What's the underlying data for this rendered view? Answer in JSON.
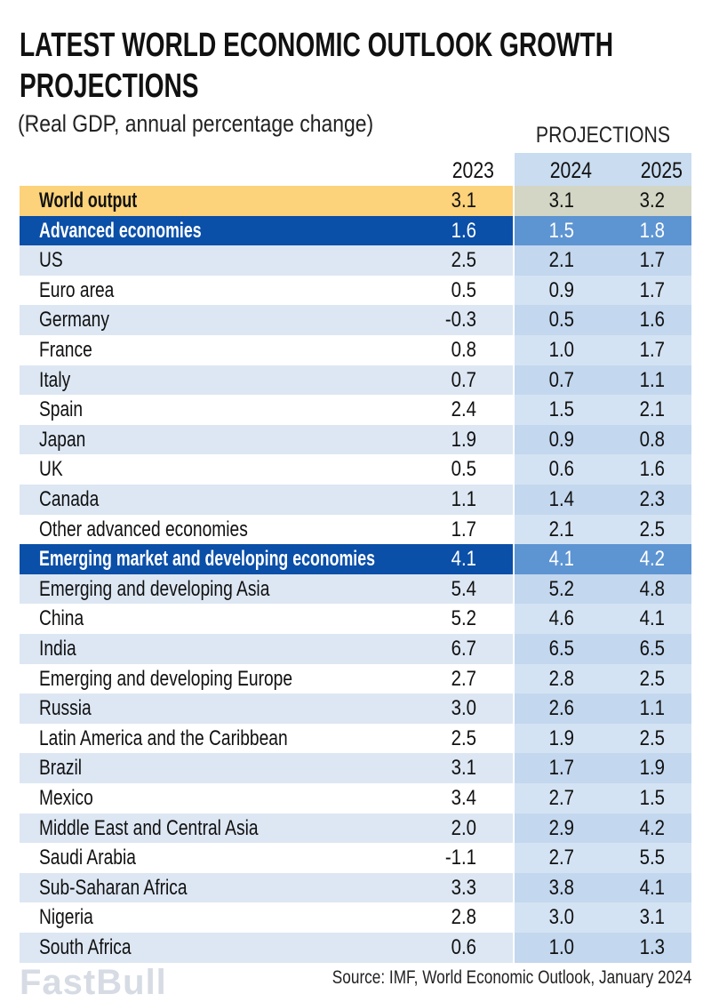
{
  "chart_data": {
    "type": "table",
    "title": "LATEST WORLD ECONOMIC OUTLOOK GROWTH PROJECTIONS",
    "subtitle": "(Real GDP, annual percentage change)",
    "projections_label": "PROJECTIONS",
    "columns": [
      "2023",
      "2024",
      "2025"
    ],
    "rows": [
      {
        "name": "World output",
        "values": [
          "3.1",
          "3.1",
          "3.2"
        ],
        "style": "world"
      },
      {
        "name": "Advanced economies",
        "values": [
          "1.6",
          "1.5",
          "1.8"
        ],
        "style": "group"
      },
      {
        "name": "US",
        "values": [
          "2.5",
          "2.1",
          "1.7"
        ]
      },
      {
        "name": "Euro area",
        "values": [
          "0.5",
          "0.9",
          "1.7"
        ]
      },
      {
        "name": "Germany",
        "values": [
          "-0.3",
          "0.5",
          "1.6"
        ]
      },
      {
        "name": "France",
        "values": [
          "0.8",
          "1.0",
          "1.7"
        ]
      },
      {
        "name": "Italy",
        "values": [
          "0.7",
          "0.7",
          "1.1"
        ]
      },
      {
        "name": "Spain",
        "values": [
          "2.4",
          "1.5",
          "2.1"
        ]
      },
      {
        "name": "Japan",
        "values": [
          "1.9",
          "0.9",
          "0.8"
        ]
      },
      {
        "name": "UK",
        "values": [
          "0.5",
          "0.6",
          "1.6"
        ]
      },
      {
        "name": "Canada",
        "values": [
          "1.1",
          "1.4",
          "2.3"
        ]
      },
      {
        "name": "Other advanced economies",
        "values": [
          "1.7",
          "2.1",
          "2.5"
        ]
      },
      {
        "name": "Emerging market and developing economies",
        "values": [
          "4.1",
          "4.1",
          "4.2"
        ],
        "style": "group"
      },
      {
        "name": "Emerging and developing Asia",
        "values": [
          "5.4",
          "5.2",
          "4.8"
        ]
      },
      {
        "name": "China",
        "values": [
          "5.2",
          "4.6",
          "4.1"
        ]
      },
      {
        "name": "India",
        "values": [
          "6.7",
          "6.5",
          "6.5"
        ]
      },
      {
        "name": "Emerging and developing Europe",
        "values": [
          "2.7",
          "2.8",
          "2.5"
        ]
      },
      {
        "name": "Russia",
        "values": [
          "3.0",
          "2.6",
          "1.1"
        ]
      },
      {
        "name": "Latin America and the Caribbean",
        "values": [
          "2.5",
          "1.9",
          "2.5"
        ]
      },
      {
        "name": "Brazil",
        "values": [
          "3.1",
          "1.7",
          "1.9"
        ]
      },
      {
        "name": "Mexico",
        "values": [
          "3.4",
          "2.7",
          "1.5"
        ]
      },
      {
        "name": "Middle East and Central Asia",
        "values": [
          "2.0",
          "2.9",
          "4.2"
        ]
      },
      {
        "name": "Saudi Arabia",
        "values": [
          "-1.1",
          "2.7",
          "5.5"
        ]
      },
      {
        "name": "Sub-Saharan Africa",
        "values": [
          "3.3",
          "3.8",
          "4.1"
        ]
      },
      {
        "name": "Nigeria",
        "values": [
          "2.8",
          "3.0",
          "3.1"
        ]
      },
      {
        "name": "South Africa",
        "values": [
          "0.6",
          "1.0",
          "1.3"
        ]
      }
    ],
    "source": "Source: IMF, World Economic Outlook, January 2024",
    "colors": {
      "world": "#fcd27a",
      "world_proj": "#d3d6c4",
      "group": "#0a4fa8",
      "group_proj": "#5d94d2",
      "light": "#dde7f3",
      "light_proj": "#c3d7ee",
      "white": "#ffffff",
      "white_proj": "#d4e3f3"
    }
  },
  "watermark": "FastBull"
}
